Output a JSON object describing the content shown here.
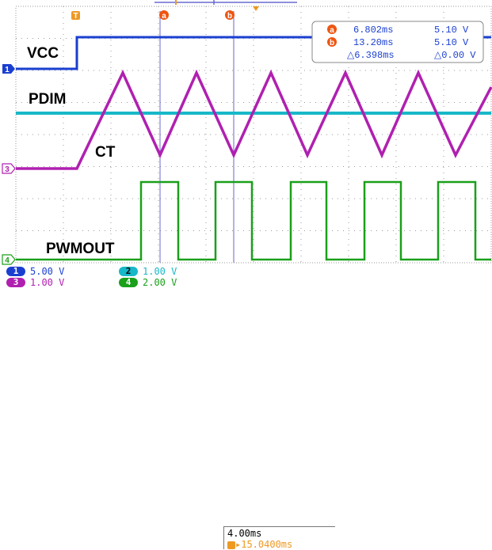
{
  "traces": {
    "vcc": "VCC",
    "pdim": "PDIM",
    "ct": "CT",
    "pwmout": "PWMOUT"
  },
  "markers": {
    "trigger_marker": "T",
    "cursor_a": "a",
    "cursor_b": "b",
    "ch1": "1",
    "ch3": "3",
    "ch4": "4"
  },
  "cursor_readout": {
    "a_time": "6.802ms",
    "a_volt": "5.10 V",
    "b_time": "13.20ms",
    "b_volt": "5.10 V",
    "delta_time": "△6.398ms",
    "delta_volt": "△0.00 V"
  },
  "channels": [
    {
      "num": "1",
      "scale": "5.00 V",
      "color": "#1a3fd0"
    },
    {
      "num": "2",
      "scale": "1.00 V",
      "color": "#18b8c8"
    },
    {
      "num": "3",
      "scale": "1.00 V",
      "color": "#b020b0"
    },
    {
      "num": "4",
      "scale": "2.00 V",
      "color": "#1aa01a"
    }
  ],
  "timebase": {
    "scale": "4.00ms",
    "trigger_pos": "▸15.0400ms"
  },
  "colors": {
    "vcc": "#1a3fd0",
    "pdim": "#18b8c8",
    "ct": "#b020b0",
    "pwmout": "#1aa01a",
    "cursor": "#ee6611",
    "cursor_line": "#6a6ad0",
    "grid": "#9a9a9a"
  }
}
